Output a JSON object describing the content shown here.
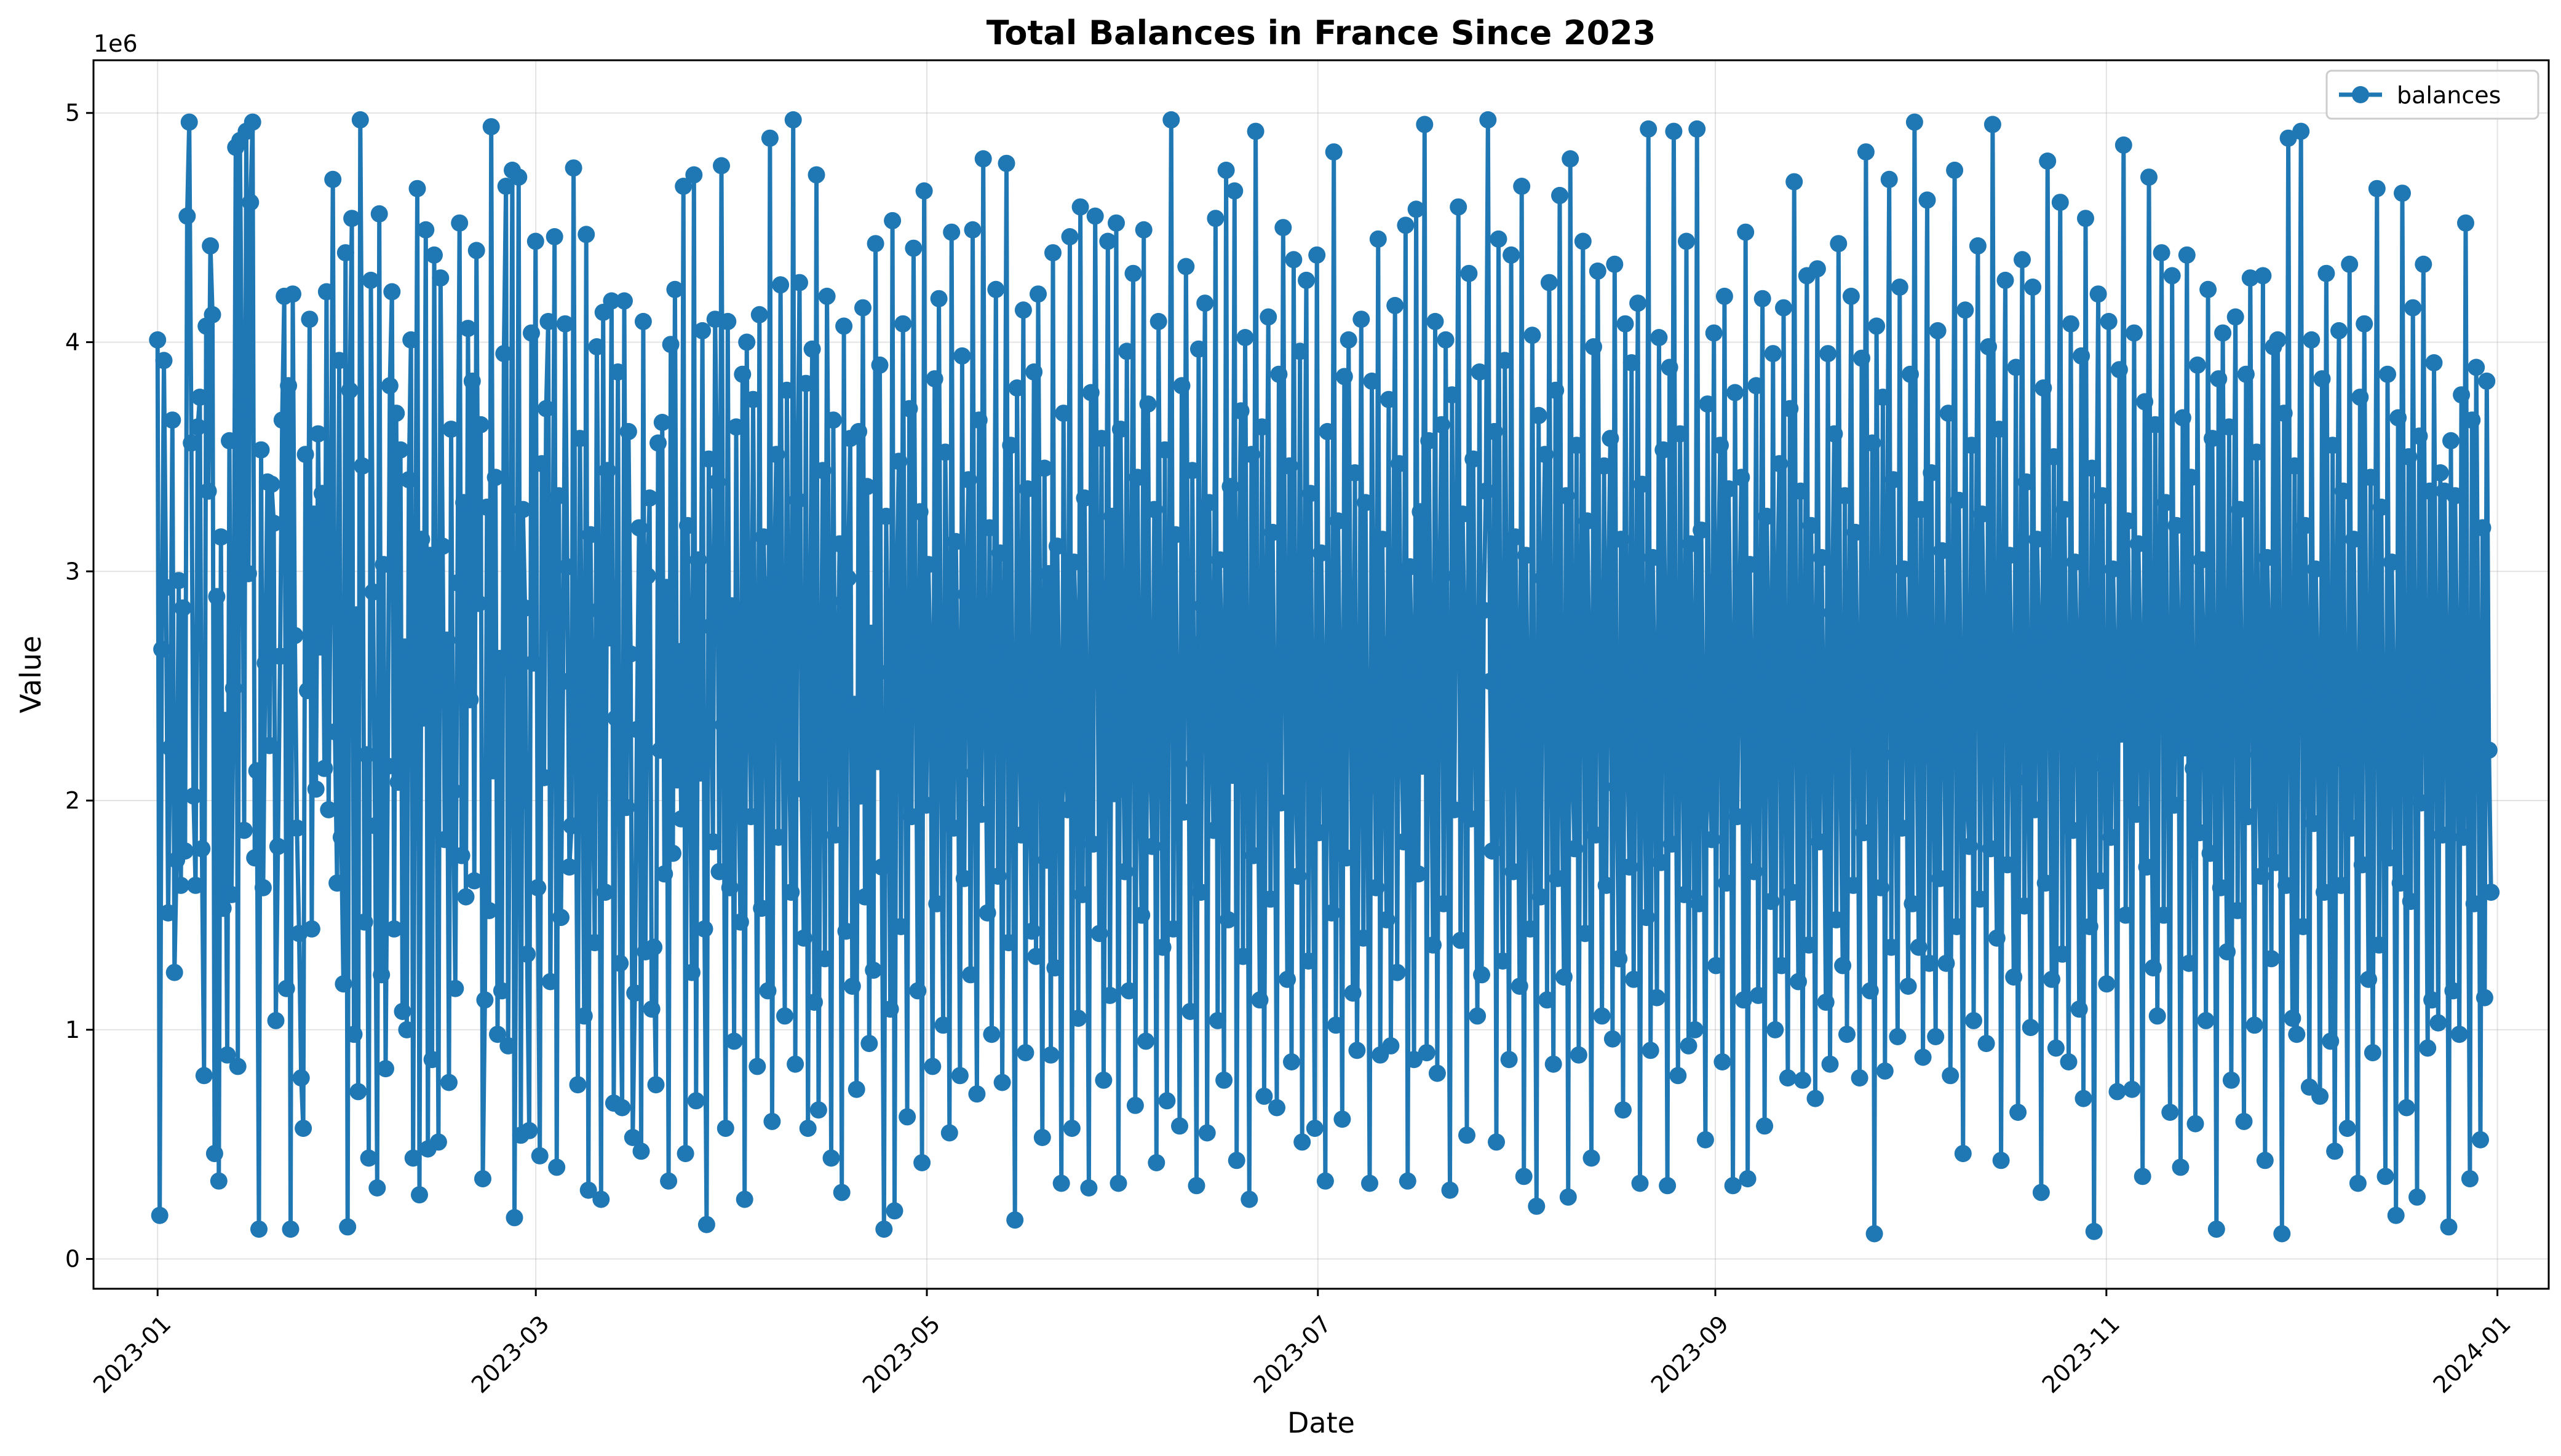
{
  "chart_data": {
    "type": "line",
    "title": "Total Balances in France Since 2023",
    "xlabel": "Date",
    "ylabel": "Value",
    "y_offset_label": "1e6",
    "x_ticks": [
      "2023-01",
      "2023-03",
      "2023-05",
      "2023-07",
      "2023-09",
      "2023-11",
      "2024-01"
    ],
    "x_range": [
      "2022-12-22",
      "2024-01-09"
    ],
    "y_ticks": [
      0,
      1,
      2,
      3,
      4,
      5
    ],
    "ylim": [
      -0.13,
      5.23
    ],
    "grid": true,
    "legend": "upper right",
    "series": [
      {
        "name": "balances",
        "color": "#1f77b4",
        "marker": "circle",
        "x_start": "2023-01-01",
        "x_end": "2023-12-31",
        "frequency": "4 samples per day",
        "values_millions": [
          4.01,
          0.19,
          2.66,
          3.92,
          2.93,
          1.51,
          2.23,
          3.66,
          1.25,
          1.74,
          2.96,
          1.63,
          2.84,
          1.78,
          4.55,
          4.96,
          3.56,
          2.02,
          1.63,
          3.63,
          3.76,
          1.79,
          0.8,
          4.07,
          3.35,
          4.42,
          4.12,
          0.46,
          2.89,
          0.34,
          3.15,
          1.53,
          2.35,
          0.89,
          3.57,
          1.59,
          2.49,
          4.85,
          0.84,
          4.88,
          3.71,
          1.87,
          4.92,
          2.99,
          4.61,
          4.96,
          1.75,
          2.13,
          0.13,
          3.53,
          1.62,
          2.6,
          3.39,
          2.24,
          3.38,
          3.21,
          1.04,
          1.8,
          2.63,
          3.66,
          4.2,
          1.18,
          3.81,
          0.13,
          4.21,
          2.72,
          1.88,
          1.42,
          0.79,
          0.57,
          3.51,
          2.48,
          4.1,
          1.44,
          3.25,
          2.05,
          3.6,
          2.67,
          3.34,
          2.14,
          4.22,
          1.96,
          3.04,
          4.71,
          2.3,
          1.64,
          3.92,
          1.84,
          1.2,
          4.39,
          0.14,
          3.79,
          4.54,
          0.98,
          2.81,
          0.73,
          4.97,
          3.46,
          1.47,
          2.2,
          0.44,
          4.27,
          2.91,
          1.89,
          0.31,
          4.56,
          1.24,
          3.03,
          0.83,
          2.15,
          3.81,
          4.22,
          1.44,
          3.69,
          2.08,
          3.53,
          1.08,
          2.67,
          1.0,
          3.4,
          4.01,
          0.44,
          2.75,
          4.67,
          0.28,
          3.14,
          2.36,
          4.49,
          0.48,
          3.07,
          0.87,
          4.38,
          2.51,
          0.51,
          4.28,
          3.11,
          1.83,
          2.7,
          0.77,
          3.62,
          2.04,
          1.18,
          2.95,
          4.52,
          1.76,
          3.3,
          1.58,
          4.06,
          2.44,
          3.83,
          1.65,
          4.4,
          2.86,
          3.64,
          0.35,
          1.13,
          3.28,
          1.52,
          4.94,
          2.13,
          3.41,
          0.98,
          2.62,
          1.17,
          3.95,
          4.68,
          0.93,
          2.57,
          4.75,
          0.18,
          1.98,
          4.72,
          0.54,
          3.27,
          2.84,
          1.33,
          0.56,
          4.04,
          2.6,
          4.44,
          1.62,
          0.45,
          3.47,
          2.1,
          3.71,
          4.09,
          1.21,
          2.77,
          4.46,
          0.4,
          3.33,
          1.49,
          2.52,
          4.08,
          3.02,
          1.71,
          1.89,
          4.76,
          2.29,
          0.76,
          3.58,
          2.45,
          1.06,
          4.47,
          0.3,
          3.16,
          2.19,
          1.38,
          3.98,
          2.83,
          0.26,
          4.13,
          1.6,
          3.44,
          2.71,
          4.18,
          0.68,
          2.36,
          3.87,
          1.29,
          0.66,
          4.18,
          1.97,
          3.61,
          2.64,
          0.53,
          1.16,
          2.31,
          3.19,
          0.47,
          4.09,
          1.34,
          2.98,
          3.32,
          1.09,
          1.36,
          0.76,
          3.56,
          2.22,
          3.65,
          1.68,
          2.93,
          0.34,
          3.99,
          1.77,
          4.23,
          2.09,
          2.65,
          1.92,
          4.68,
          0.46,
          3.2,
          2.46,
          1.25,
          4.73,
          0.69,
          3.05,
          2.12,
          4.05,
          1.44,
          0.15,
          3.49,
          2.76,
          1.82,
          4.1,
          3.39,
          1.69,
          4.77,
          2.33,
          0.57,
          4.09,
          1.62,
          2.85,
          0.95,
          3.63,
          2.2,
          1.47,
          3.86,
          0.26,
          4.0,
          2.58,
          1.93,
          3.75,
          2.41,
          0.84,
          4.12,
          1.53,
          3.15,
          2.69,
          1.17,
          4.89,
          0.6,
          2.96,
          3.51,
          1.84,
          4.25,
          2.48,
          1.06,
          3.79,
          2.32,
          1.6,
          4.97,
          0.85,
          3.31,
          4.26,
          2.05,
          1.4,
          3.82,
          0.57,
          2.74,
          3.97,
          1.12,
          4.73,
          0.65,
          2.26,
          3.44,
          1.31,
          4.2,
          2.87,
          0.44,
          3.66,
          1.85,
          2.51,
          3.12,
          0.29,
          4.07,
          1.43,
          2.97,
          3.58,
          1.19,
          2.42,
          0.74,
          3.61,
          2.02,
          4.15,
          1.58,
          3.37,
          0.94,
          2.73,
          1.26,
          4.43,
          2.17,
          3.9,
          1.71,
          0.13,
          3.24,
          2.56,
          1.09,
          4.53,
          0.21,
          2.91,
          3.48,
          1.45,
          4.08,
          2.39,
          0.62,
          3.71,
          1.93,
          4.41,
          2.67,
          1.17,
          3.26,
          0.42,
          4.66,
          1.98,
          3.03,
          2.59,
          0.84,
          3.84,
          1.55,
          4.19,
          2.28,
          1.02,
          3.52,
          2.81,
          0.55,
          4.48,
          1.88,
          3.13,
          2.45,
          0.8,
          3.94,
          1.66,
          2.9,
          3.4,
          1.24,
          4.49,
          2.12,
          0.72,
          3.66,
          1.94,
          4.8,
          2.36,
          1.51,
          3.19,
          0.98,
          2.64,
          4.23,
          1.67,
          3.08,
          0.77,
          2.71,
          4.78,
          1.38,
          3.55,
          2.21,
          0.17,
          3.8,
          2.49,
          1.85,
          4.14,
          0.9,
          3.36,
          2.06,
          1.43,
          3.87,
          1.32,
          4.21,
          2.57,
          0.53,
          3.45,
          1.74,
          2.99,
          0.89,
          4.39,
          1.27,
          3.11,
          2.43,
          0.33,
          3.69,
          2.15,
          1.96,
          4.46,
          0.57,
          3.04,
          2.68,
          1.05,
          4.59,
          1.59,
          3.32,
          2.24,
          0.31,
          3.78,
          1.81,
          4.55,
          2.94,
          1.42,
          3.58,
          0.78,
          2.34,
          4.44,
          1.15,
          3.24,
          2.03,
          4.52,
          0.33,
          3.62,
          2.51,
          1.69,
          3.96,
          1.17,
          2.8,
          4.3,
          0.67,
          3.41,
          2.14,
          1.5,
          4.49,
          0.95,
          3.73,
          2.22,
          1.8,
          3.27,
          0.42,
          4.09,
          2.62,
          1.36,
          3.53,
          0.69,
          2.9,
          4.97,
          1.44,
          3.16,
          2.28,
          0.58,
          3.81,
          1.95,
          4.33,
          2.7,
          1.08,
          3.44,
          2.16,
          0.32,
          3.97,
          1.6,
          2.85,
          4.17,
          0.55,
          3.3,
          2.37,
          1.87,
          4.54,
          1.04,
          3.05,
          2.6,
          0.78,
          4.75,
          1.48,
          3.37,
          2.11,
          4.66,
          0.43,
          2.93,
          3.7,
          1.32,
          4.02,
          2.46,
          0.26,
          3.51,
          1.76,
          4.92,
          2.19,
          1.13,
          3.63,
          0.71,
          2.74,
          4.11,
          1.57,
          3.17,
          2.33,
          0.66,
          3.86,
          1.99,
          4.5,
          2.66,
          1.22,
          3.46,
          0.86,
          4.36,
          2.08,
          1.67,
          3.96,
          0.51,
          2.81,
          4.27,
          1.3,
          3.34,
          2.12,
          0.57,
          4.38,
          1.86,
          3.08,
          2.5,
          0.34,
          3.61,
          2.25,
          1.51,
          4.83,
          1.02,
          3.22,
          2.44,
          0.61,
          3.85,
          1.75,
          4.01,
          2.63,
          1.16,
          3.43,
          0.91,
          2.19,
          4.1,
          1.4,
          3.3,
          2.06,
          0.33,
          3.83,
          2.55,
          1.62,
          4.45,
          0.89,
          3.14,
          2.23,
          1.48,
          3.75,
          0.93,
          2.7,
          4.16,
          1.25,
          3.47,
          2.32,
          1.82,
          4.51,
          0.34,
          3.02,
          2.57,
          0.87,
          4.58,
          1.68,
          3.26,
          2.15,
          4.95,
          0.9,
          3.57,
          2.4,
          1.37,
          4.09,
          0.81,
          2.86,
          3.64,
          1.55,
          4.01,
          2.25,
          0.3,
          3.77,
          1.96,
          2.98,
          4.59,
          1.39,
          3.25,
          2.68,
          0.54,
          4.3,
          1.92,
          3.49,
          2.38,
          1.06,
          3.87,
          1.24,
          2.83,
          3.35,
          4.97,
          2.52,
          1.78,
          3.61,
          0.51,
          4.45,
          2.18,
          1.3,
          3.92,
          2.63,
          0.87,
          4.38,
          1.69,
          3.15,
          2.41,
          1.19,
          4.68,
          0.36,
          3.07,
          2.28,
          1.44,
          4.03,
          2.11,
          0.23,
          3.68,
          1.58,
          2.97,
          3.51,
          1.13,
          4.26,
          2.49,
          0.85,
          3.79,
          1.66,
          4.64,
          2.03,
          1.23,
          3.33,
          0.27,
          4.8,
          2.16,
          1.79,
          3.55,
          0.89,
          2.78,
          4.44,
          1.42,
          3.22,
          2.59,
          0.44,
          3.98,
          1.85,
          4.31,
          2.47,
          1.06,
          3.46,
          1.63,
          2.94,
          3.58,
          0.96,
          4.34,
          2.06,
          1.31,
          3.14,
          0.65,
          4.08,
          2.31,
          1.71,
          3.91,
          1.22,
          2.58,
          4.17,
          0.33,
          3.38,
          2.22,
          1.49,
          4.93,
          0.91,
          3.06,
          2.44,
          1.14,
          4.02,
          1.73,
          3.53,
          2.75,
          0.32,
          3.89,
          1.81,
          4.92,
          2.17,
          0.8,
          3.6,
          2.36,
          1.59,
          4.44,
          0.93,
          3.12,
          2.54,
          1.0,
          4.93,
          1.55,
          3.18,
          2.3,
          0.52,
          3.73,
          2.08,
          1.83,
          4.04,
          1.28,
          2.97,
          3.55,
          0.86,
          4.2,
          1.64,
          3.36,
          2.47,
          0.32,
          3.78,
          1.93,
          2.72,
          3.41,
          1.13,
          4.48,
          0.35,
          3.03,
          2.27,
          1.69,
          3.81,
          1.15,
          2.58,
          4.19,
          0.58,
          3.24,
          2.64,
          1.56,
          3.95,
          1.0,
          2.88,
          3.47,
          1.28,
          4.15,
          2.22,
          0.79,
          3.71,
          1.6,
          4.7,
          2.42,
          1.21,
          3.35,
          0.78,
          2.66,
          4.29,
          1.37,
          3.2,
          2.56,
          0.7,
          4.32,
          1.82,
          3.06,
          2.29,
          1.12,
          3.95,
          0.85,
          2.82,
          3.6,
          1.48,
          4.43,
          2.14,
          1.28,
          3.33,
          0.98,
          2.7,
          4.2,
          1.63,
          3.17,
          2.5,
          0.79,
          3.93,
          1.86,
          4.83,
          2.31,
          1.17,
          3.56,
          0.11,
          4.07,
          2.48,
          1.62,
          3.76,
          0.82,
          2.98,
          4.71,
          1.36,
          3.4,
          2.2,
          0.97,
          4.24,
          1.88,
          3.01,
          2.64,
          1.19,
          3.86,
          1.55,
          4.96,
          2.38,
          1.36,
          3.27,
          0.88,
          2.76,
          4.62,
          1.29,
          3.43,
          2.18,
          0.97,
          4.05,
          1.66,
          3.09,
          2.53,
          1.29,
          3.69,
          0.8,
          2.62,
          4.75,
          1.45,
          3.31,
          2.26,
          0.46,
          4.14,
          2.0,
          1.8,
          3.55,
          1.04,
          2.84,
          4.42,
          1.57,
          3.25,
          2.66,
          0.94,
          3.98,
          1.79,
          4.95,
          2.24,
          1.4,
          3.62,
          0.43,
          2.92,
          4.27,
          1.72,
          3.07,
          2.42,
          1.23,
          3.89,
          0.64,
          2.7,
          4.36,
          1.54,
          3.39,
          2.09,
          1.01,
          4.24,
          1.96,
          3.14,
          2.72,
          0.29,
          3.8,
          1.64,
          4.79,
          2.51,
          1.22,
          3.5,
          0.92,
          2.8,
          4.61,
          1.33,
          3.27,
          2.35,
          0.86,
          4.08,
          1.87,
          3.04,
          2.6,
          1.09,
          3.94,
          0.7,
          4.54,
          2.23,
          1.45,
          3.45,
          0.12,
          2.9,
          4.21,
          1.65,
          3.33,
          2.15,
          1.2,
          4.09,
          1.84,
          3.01,
          2.57,
          0.73,
          3.88,
          2.29,
          4.86,
          1.5,
          3.22,
          2.45,
          0.74,
          4.04,
          1.94,
          3.12,
          2.62,
          0.36,
          3.74,
          1.71,
          4.72,
          2.33,
          1.27,
          3.64,
          1.06,
          2.85,
          4.39,
          1.5,
          3.3,
          2.4,
          0.64,
          4.29,
          1.98,
          3.2,
          2.69,
          0.4,
          3.67,
          2.23,
          4.38,
          1.29,
          3.41,
          2.14,
          0.59,
          3.9,
          1.86,
          3.05,
          2.57,
          1.04,
          4.23,
          1.77,
          3.58,
          2.46,
          0.13,
          3.84,
          1.62,
          4.04,
          2.28,
          1.34,
          3.63,
          0.78,
          2.81,
          4.11,
          1.52,
          3.27,
          2.44,
          0.6,
          3.86,
          1.93,
          4.28,
          2.53,
          1.02,
          3.52,
          2.2,
          1.67,
          4.29,
          0.43,
          3.06,
          2.63,
          1.31,
          3.98,
          1.73,
          4.01,
          2.39,
          0.11,
          3.69,
          1.63,
          4.89,
          2.36,
          1.05,
          3.46,
          0.98,
          2.78,
          4.92,
          1.45,
          3.2,
          2.6,
          0.75,
          4.01,
          1.9,
          3.01,
          2.5,
          0.71,
          3.84,
          1.6,
          4.3,
          2.43,
          0.95,
          3.55,
          0.47,
          2.91,
          4.05,
          1.63,
          3.35,
          2.17,
          0.57,
          4.34,
          1.88,
          3.14,
          2.35,
          0.33,
          3.76,
          1.72,
          4.08,
          2.47,
          1.22,
          3.41,
          0.9,
          2.64,
          4.67,
          1.37,
          3.28,
          2.22,
          0.36,
          3.86,
          1.75,
          3.04,
          2.45,
          0.19,
          3.67,
          1.64,
          4.65,
          2.33,
          0.66,
          3.5,
          1.56,
          4.15,
          2.52,
          0.27,
          3.59,
          1.99,
          4.34,
          2.39,
          0.92,
          3.35,
          1.13,
          3.91,
          2.56,
          1.03,
          3.43,
          1.85,
          3.35,
          2.61,
          0.14,
          3.57,
          1.17,
          3.33,
          2.54,
          0.98,
          3.77,
          1.84,
          4.52,
          2.11,
          0.35,
          3.66,
          1.55,
          3.89,
          2.53,
          0.52,
          3.19,
          1.14,
          3.83,
          2.22,
          1.6
        ]
      }
    ]
  }
}
